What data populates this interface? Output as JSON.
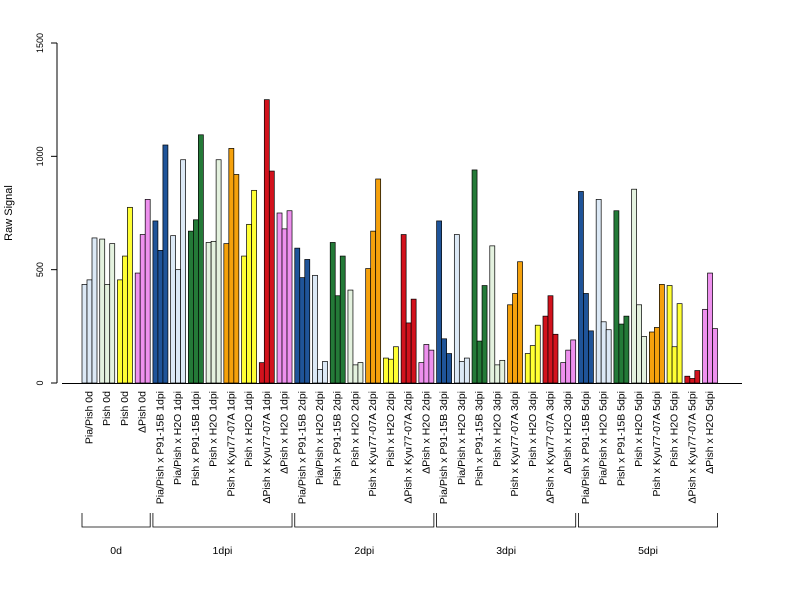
{
  "chart_data": {
    "type": "bar",
    "ylabel": "Raw Signal",
    "ylim": [
      0,
      1500
    ],
    "yticks": [
      0,
      500,
      1000,
      1500
    ],
    "groups": [
      {
        "label": "0d",
        "categories": [
          {
            "label": "Pia/Pish 0d",
            "color": "#dce9f6",
            "values": [
              435,
              455,
              640
            ]
          },
          {
            "label": "Pish 0d",
            "color": "#e4f2df",
            "values": [
              635,
              435,
              615
            ]
          },
          {
            "label": "Pish 0d",
            "color": "#ffff33",
            "values": [
              455,
              560,
              775
            ]
          },
          {
            "label": "ΔPish 0d",
            "color": "#ee90ee",
            "values": [
              485,
              655,
              810
            ]
          }
        ]
      },
      {
        "label": "1dpi",
        "categories": [
          {
            "label": "Pia/Pish x P91-15B 1dpi",
            "color": "#1f5499",
            "values": [
              715,
              585,
              1050
            ]
          },
          {
            "label": "Pia/Pish x H2O 1dpi",
            "color": "#dce9f6",
            "values": [
              650,
              500,
              985
            ]
          },
          {
            "label": "Pish x P91-15B 1dpi",
            "color": "#247a38",
            "values": [
              670,
              720,
              1095
            ]
          },
          {
            "label": "Pish x H2O 1dpi",
            "color": "#e4f2df",
            "values": [
              620,
              625,
              985
            ]
          },
          {
            "label": "Pish x Kyu77-07A 1dpi",
            "color": "#f5a10c",
            "values": [
              615,
              1035,
              920
            ]
          },
          {
            "label": "Pish x H2O 1dpi",
            "color": "#ffff33",
            "values": [
              560,
              700,
              850
            ]
          },
          {
            "label": "ΔPish x Kyu77-07A 1dpi",
            "color": "#d2121d",
            "values": [
              90,
              1250,
              935
            ]
          },
          {
            "label": "ΔPish x H2O 1dpi",
            "color": "#ee90ee",
            "values": [
              750,
              680,
              760
            ]
          }
        ]
      },
      {
        "label": "2dpi",
        "categories": [
          {
            "label": "Pia/Pish x P91-15B 2dpi",
            "color": "#1f5499",
            "values": [
              595,
              465,
              545
            ]
          },
          {
            "label": "Pia/Pish x H2O 2dpi",
            "color": "#dce9f6",
            "values": [
              475,
              60,
              95
            ]
          },
          {
            "label": "Pish x P91-15B 2dpi",
            "color": "#247a38",
            "values": [
              620,
              385,
              560
            ]
          },
          {
            "label": "Pish x H2O 2dpi",
            "color": "#e4f2df",
            "values": [
              410,
              80,
              90
            ]
          },
          {
            "label": "Pish x Kyu77-07A 2dpi",
            "color": "#f5a10c",
            "values": [
              505,
              670,
              900
            ]
          },
          {
            "label": "Pish x H2O 2dpi",
            "color": "#ffff33",
            "values": [
              110,
              105,
              160
            ]
          },
          {
            "label": "ΔPish x Kyu77-07A 2dpi",
            "color": "#d2121d",
            "values": [
              655,
              265,
              370
            ]
          },
          {
            "label": "ΔPish x H2O 2dpi",
            "color": "#ee90ee",
            "values": [
              90,
              170,
              145
            ]
          }
        ]
      },
      {
        "label": "3dpi",
        "categories": [
          {
            "label": "Pia/Pish x P91-15B 3dpi",
            "color": "#1f5499",
            "values": [
              715,
              195,
              130
            ]
          },
          {
            "label": "Pia/Pish x H2O 3dpi",
            "color": "#dce9f6",
            "values": [
              655,
              95,
              110
            ]
          },
          {
            "label": "Pish x P91-15B 3dpi",
            "color": "#247a38",
            "values": [
              940,
              185,
              430
            ]
          },
          {
            "label": "Pish x H2O 3dpi",
            "color": "#e4f2df",
            "values": [
              605,
              80,
              100
            ]
          },
          {
            "label": "Pish x Kyu77-07A 3dpi",
            "color": "#f5a10c",
            "values": [
              345,
              395,
              535
            ]
          },
          {
            "label": "Pish x H2O 3dpi",
            "color": "#ffff33",
            "values": [
              130,
              165,
              255
            ]
          },
          {
            "label": "ΔPish x Kyu77-07A 3dpi",
            "color": "#d2121d",
            "values": [
              295,
              385,
              215
            ]
          },
          {
            "label": "ΔPish x H2O 3dpi",
            "color": "#ee90ee",
            "values": [
              90,
              145,
              190
            ]
          }
        ]
      },
      {
        "label": "5dpi",
        "categories": [
          {
            "label": "Pia/Pish x P91-15B 5dpi",
            "color": "#1f5499",
            "values": [
              845,
              395,
              230
            ]
          },
          {
            "label": "Pia/Pish x H2O 5dpi",
            "color": "#dce9f6",
            "values": [
              810,
              270,
              235
            ]
          },
          {
            "label": "Pish x P91-15B 5dpi",
            "color": "#247a38",
            "values": [
              760,
              260,
              295
            ]
          },
          {
            "label": "Pish x H2O 5dpi",
            "color": "#e4f2df",
            "values": [
              855,
              345,
              205
            ]
          },
          {
            "label": "Pish x Kyu77-07A 5dpi",
            "color": "#f5a10c",
            "values": [
              225,
              245,
              435
            ]
          },
          {
            "label": "Pish x H2O 5dpi",
            "color": "#ffff33",
            "values": [
              430,
              160,
              350
            ]
          },
          {
            "label": "ΔPish x Kyu77-07A 5dpi",
            "color": "#d2121d",
            "values": [
              30,
              20,
              55
            ]
          },
          {
            "label": "ΔPish x H2O 5dpi",
            "color": "#ee90ee",
            "values": [
              325,
              485,
              240
            ]
          }
        ]
      }
    ]
  }
}
